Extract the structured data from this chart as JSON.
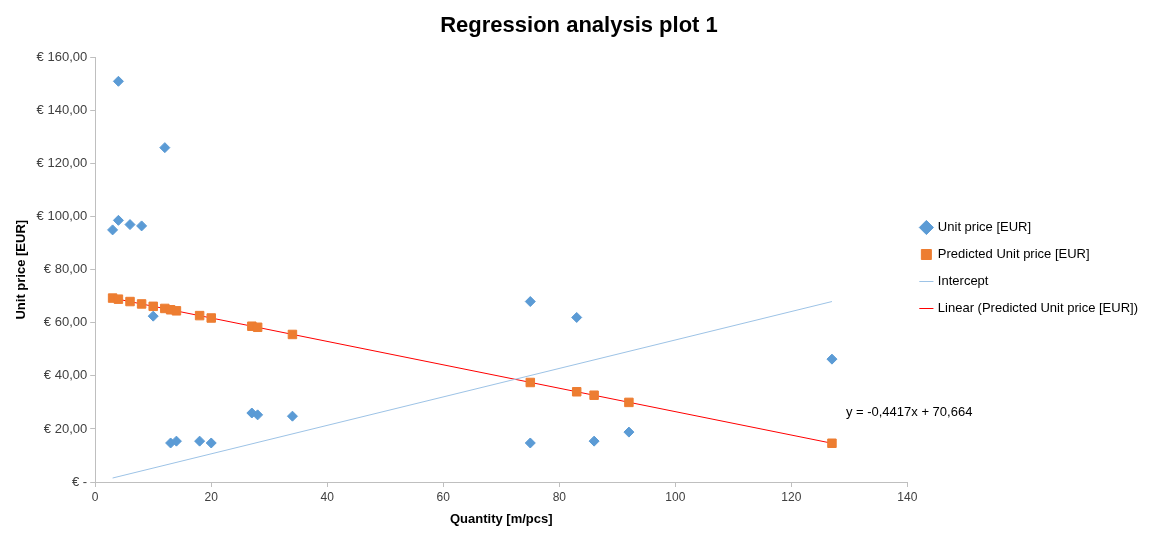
{
  "chart_data": {
    "type": "scatter",
    "title": "Regression analysis plot 1",
    "xlabel": "Quantity [m/pcs]",
    "ylabel": "Unit price [EUR]",
    "xlim": [
      0,
      140
    ],
    "xticks": [
      0,
      20,
      40,
      60,
      80,
      100,
      120,
      140
    ],
    "ylim": [
      0,
      160
    ],
    "yticks": [
      {
        "value": 0,
        "label": "€ -"
      },
      {
        "value": 20,
        "label": "€ 20,00"
      },
      {
        "value": 40,
        "label": "€ 40,00"
      },
      {
        "value": 60,
        "label": "€ 60,00"
      },
      {
        "value": 80,
        "label": "€ 80,00"
      },
      {
        "value": 100,
        "label": "€ 100,00"
      },
      {
        "value": 120,
        "label": "€ 120,00"
      },
      {
        "value": 140,
        "label": "€ 140,00"
      },
      {
        "value": 160,
        "label": "€ 160,00"
      }
    ],
    "grid": false,
    "legend": "right",
    "series": [
      {
        "name": "Unit price [EUR]",
        "type": "scatter",
        "marker": "diamond",
        "color": "#5b9bd5",
        "x": [
          3,
          4,
          4,
          6,
          8,
          10,
          12,
          13,
          14,
          18,
          20,
          27,
          28,
          34,
          75,
          83,
          75,
          86,
          92,
          127
        ],
        "values": [
          95,
          98.6,
          151,
          97,
          96.5,
          62.5,
          126,
          14.7,
          15.4,
          15.4,
          14.7,
          26,
          25.3,
          24.8,
          68,
          62,
          14.7,
          15.4,
          18.8,
          46.3
        ]
      },
      {
        "name": "Predicted Unit price [EUR]",
        "type": "scatter",
        "marker": "square",
        "color": "#ed7d31",
        "x": [
          3,
          4,
          6,
          8,
          10,
          12,
          13,
          14,
          18,
          20,
          27,
          28,
          34,
          75,
          83,
          86,
          92,
          127
        ],
        "values": [
          69.3,
          68.9,
          68.0,
          67.1,
          66.2,
          65.4,
          64.9,
          64.5,
          62.7,
          61.8,
          58.7,
          58.3,
          55.6,
          37.5,
          34.0,
          32.7,
          30.0,
          14.6
        ]
      },
      {
        "name": "Intercept",
        "type": "line",
        "marker": "none",
        "color": "#9dc3e6",
        "x": [
          3,
          127
        ],
        "values": [
          1.5,
          68
        ]
      },
      {
        "name": "Linear (Predicted Unit price [EUR])",
        "type": "line",
        "marker": "none",
        "color": "#ff0000",
        "x": [
          3,
          127
        ],
        "values": [
          69.3,
          14.6
        ]
      }
    ],
    "annotations": [
      "y = -0,4417x + 70,664"
    ]
  }
}
